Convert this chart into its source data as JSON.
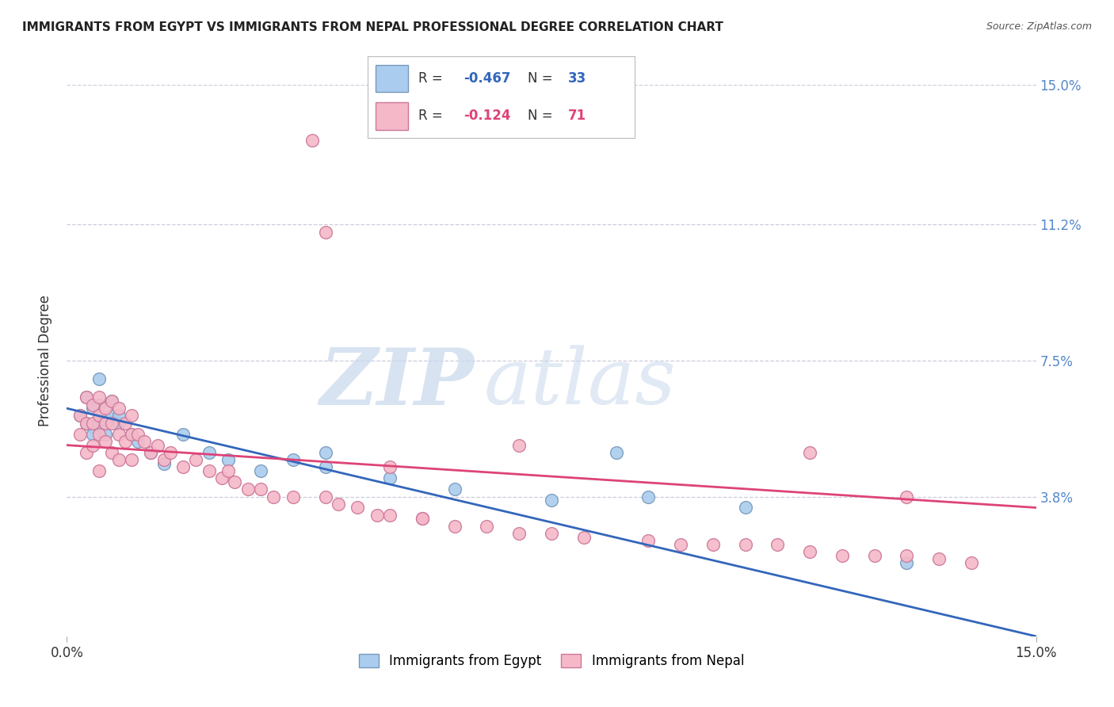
{
  "title": "IMMIGRANTS FROM EGYPT VS IMMIGRANTS FROM NEPAL PROFESSIONAL DEGREE CORRELATION CHART",
  "source": "Source: ZipAtlas.com",
  "ylabel": "Professional Degree",
  "xlim": [
    0.0,
    0.15
  ],
  "ylim": [
    0.0,
    0.15
  ],
  "egypt_color": "#aaccee",
  "egypt_edge_color": "#7799bb",
  "nepal_color": "#f5b8c8",
  "nepal_edge_color": "#cc7799",
  "egypt_line_color": "#3366bb",
  "nepal_line_color": "#dd4477",
  "egypt_R": -0.467,
  "egypt_N": 33,
  "nepal_R": -0.124,
  "nepal_N": 71,
  "legend_label_egypt": "Immigrants from Egypt",
  "legend_label_nepal": "Immigrants from Nepal",
  "background_color": "#ffffff",
  "right_axis_color": "#5588cc",
  "title_color": "#222222",
  "source_color": "#555555",
  "watermark1": "ZIP",
  "watermark2": "atlas",
  "egypt_line_x": [
    0.0,
    0.15
  ],
  "egypt_line_y": [
    0.062,
    0.0
  ],
  "nepal_line_x": [
    0.0,
    0.15
  ],
  "nepal_line_y": [
    0.052,
    0.035
  ],
  "egypt_points_x": [
    0.002,
    0.003,
    0.003,
    0.004,
    0.004,
    0.004,
    0.005,
    0.005,
    0.005,
    0.006,
    0.006,
    0.007,
    0.007,
    0.008,
    0.008,
    0.01,
    0.011,
    0.013,
    0.015,
    0.018,
    0.022,
    0.025,
    0.03,
    0.035,
    0.04,
    0.04,
    0.05,
    0.06,
    0.075,
    0.085,
    0.09,
    0.105,
    0.13
  ],
  "egypt_points_y": [
    0.06,
    0.058,
    0.065,
    0.057,
    0.062,
    0.055,
    0.063,
    0.058,
    0.07,
    0.059,
    0.055,
    0.06,
    0.064,
    0.058,
    0.06,
    0.055,
    0.053,
    0.05,
    0.047,
    0.055,
    0.05,
    0.048,
    0.045,
    0.048,
    0.046,
    0.05,
    0.043,
    0.04,
    0.037,
    0.05,
    0.038,
    0.035,
    0.02
  ],
  "nepal_points_x": [
    0.002,
    0.002,
    0.003,
    0.003,
    0.003,
    0.004,
    0.004,
    0.004,
    0.005,
    0.005,
    0.005,
    0.005,
    0.006,
    0.006,
    0.006,
    0.007,
    0.007,
    0.007,
    0.008,
    0.008,
    0.008,
    0.009,
    0.009,
    0.01,
    0.01,
    0.01,
    0.011,
    0.012,
    0.013,
    0.014,
    0.015,
    0.016,
    0.018,
    0.02,
    0.022,
    0.024,
    0.025,
    0.026,
    0.028,
    0.03,
    0.032,
    0.035,
    0.038,
    0.04,
    0.042,
    0.045,
    0.048,
    0.05,
    0.055,
    0.06,
    0.065,
    0.07,
    0.075,
    0.08,
    0.09,
    0.095,
    0.1,
    0.105,
    0.11,
    0.115,
    0.12,
    0.125,
    0.13,
    0.135,
    0.14,
    0.04,
    0.05,
    0.055,
    0.07,
    0.115,
    0.13
  ],
  "nepal_points_y": [
    0.06,
    0.055,
    0.065,
    0.058,
    0.05,
    0.063,
    0.058,
    0.052,
    0.065,
    0.06,
    0.055,
    0.045,
    0.062,
    0.058,
    0.053,
    0.064,
    0.058,
    0.05,
    0.062,
    0.055,
    0.048,
    0.058,
    0.053,
    0.06,
    0.055,
    0.048,
    0.055,
    0.053,
    0.05,
    0.052,
    0.048,
    0.05,
    0.046,
    0.048,
    0.045,
    0.043,
    0.045,
    0.042,
    0.04,
    0.04,
    0.038,
    0.038,
    0.135,
    0.038,
    0.036,
    0.035,
    0.033,
    0.033,
    0.032,
    0.03,
    0.03,
    0.028,
    0.028,
    0.027,
    0.026,
    0.025,
    0.025,
    0.025,
    0.025,
    0.023,
    0.022,
    0.022,
    0.022,
    0.021,
    0.02,
    0.11,
    0.046,
    0.032,
    0.052,
    0.05,
    0.038
  ]
}
